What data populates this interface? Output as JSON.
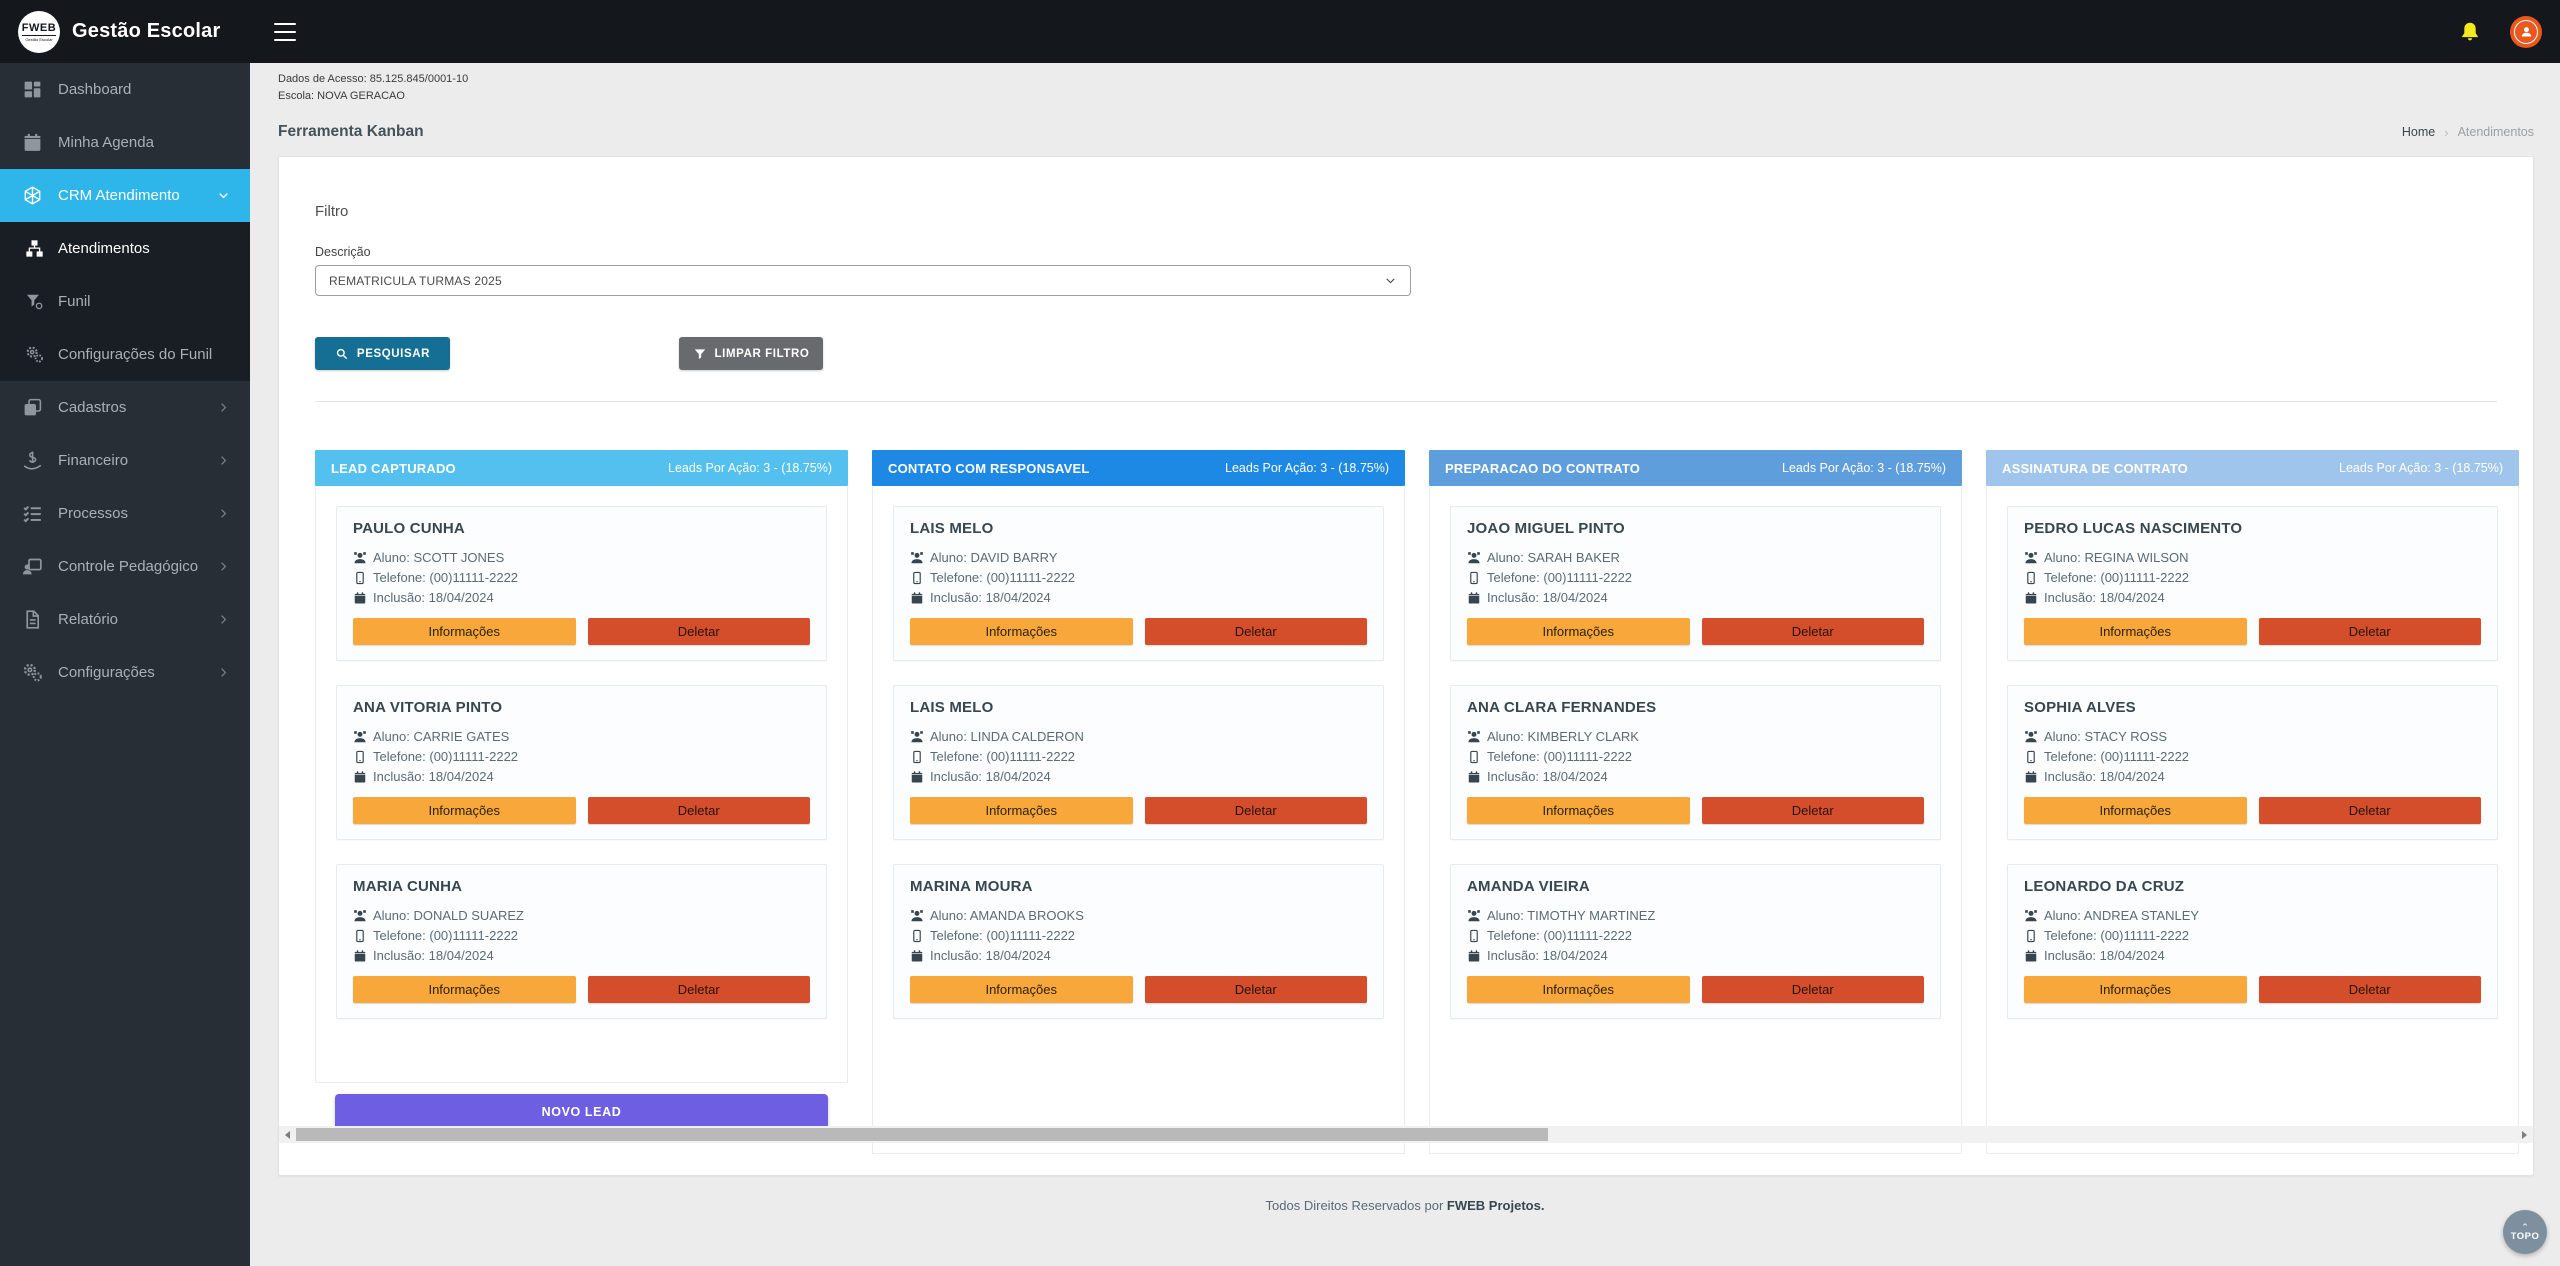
{
  "brand": {
    "logo_abbr": "FWEB",
    "logo_small": "Gestão Escolar",
    "app_title": "Gestão Escolar"
  },
  "infobar": {
    "access_line": "Dados de Acesso: 85.125.845/0001-10",
    "school_line": "Escola: NOVA GERACAO"
  },
  "page": {
    "title": "Ferramenta Kanban",
    "breadcrumb_home": "Home",
    "breadcrumb_sep": "›",
    "breadcrumb_current": "Atendimentos"
  },
  "sidebar": {
    "items": [
      {
        "label": "Dashboard",
        "icon": "dashboard-icon",
        "submenu": false
      },
      {
        "label": "Minha Agenda",
        "icon": "calendar-icon",
        "submenu": false
      },
      {
        "label": "CRM Atendimento",
        "icon": "crm-icon",
        "submenu": false,
        "active": true,
        "chevron": "down"
      },
      {
        "label": "Atendimentos",
        "icon": "atendimentos-icon",
        "submenu": true,
        "selected": true
      },
      {
        "label": "Funil",
        "icon": "funnel-icon",
        "submenu": true
      },
      {
        "label": "Configurações do Funil",
        "icon": "gears-icon",
        "submenu": true
      },
      {
        "label": "Cadastros",
        "icon": "cadastros-icon",
        "submenu": false,
        "chevron": "right"
      },
      {
        "label": "Financeiro",
        "icon": "financeiro-icon",
        "submenu": false,
        "chevron": "right"
      },
      {
        "label": "Processos",
        "icon": "processos-icon",
        "submenu": false,
        "chevron": "right"
      },
      {
        "label": "Controle Pedagógico",
        "icon": "controle-pedagogico-icon",
        "submenu": false,
        "chevron": "right"
      },
      {
        "label": "Relatório",
        "icon": "relatorio-icon",
        "submenu": false,
        "chevron": "right"
      },
      {
        "label": "Configurações",
        "icon": "configuracoes-icon",
        "submenu": false,
        "chevron": "right"
      }
    ]
  },
  "filter": {
    "section_title": "Filtro",
    "field_label": "Descrição",
    "selected_option": "REMATRICULA TURMAS 2025",
    "search_label": "PESQUISAR",
    "clear_label": "LIMPAR FILTRO",
    "search_color": "#156e93",
    "clear_color": "#676b6e"
  },
  "kanban": {
    "new_lead_label": "NOVO LEAD",
    "new_lead_color": "#6e5fe2",
    "card_buttons": {
      "info": "Informações",
      "delete": "Deletar"
    },
    "button_colors": {
      "info": "#f8a73a",
      "delete": "#d54e2c"
    },
    "field_labels": {
      "aluno": "Aluno:",
      "telefone": "Telefone:",
      "inclusao": "Inclusão:"
    },
    "columns": [
      {
        "title": "LEAD CAPTURADO",
        "stats": "Leads Por Ação: 3 - (18.75%)",
        "color": "#54c0f0",
        "has_new_lead": true,
        "cards": [
          {
            "name": "PAULO CUNHA",
            "aluno": "SCOTT JONES",
            "telefone": "(00)11111-2222",
            "inclusao": "18/04/2024"
          },
          {
            "name": "ANA VITORIA PINTO",
            "aluno": "CARRIE GATES",
            "telefone": "(00)11111-2222",
            "inclusao": "18/04/2024"
          },
          {
            "name": "MARIA CUNHA",
            "aluno": "DONALD SUAREZ",
            "telefone": "(00)11111-2222",
            "inclusao": "18/04/2024"
          }
        ]
      },
      {
        "title": "CONTATO COM RESPONSAVEL",
        "stats": "Leads Por Ação: 3 - (18.75%)",
        "color": "#1e88e5",
        "has_new_lead": false,
        "cards": [
          {
            "name": "LAIS MELO",
            "aluno": "DAVID BARRY",
            "telefone": "(00)11111-2222",
            "inclusao": "18/04/2024"
          },
          {
            "name": "LAIS MELO",
            "aluno": "LINDA CALDERON",
            "telefone": "(00)11111-2222",
            "inclusao": "18/04/2024"
          },
          {
            "name": "MARINA MOURA",
            "aluno": "AMANDA BROOKS",
            "telefone": "(00)11111-2222",
            "inclusao": "18/04/2024"
          }
        ]
      },
      {
        "title": "PREPARACAO DO CONTRATO",
        "stats": "Leads Por Ação: 3 - (18.75%)",
        "color": "#5f9edd",
        "has_new_lead": false,
        "cards": [
          {
            "name": "JOAO MIGUEL PINTO",
            "aluno": "SARAH BAKER",
            "telefone": "(00)11111-2222",
            "inclusao": "18/04/2024"
          },
          {
            "name": "ANA CLARA FERNANDES",
            "aluno": "KIMBERLY CLARK",
            "telefone": "(00)11111-2222",
            "inclusao": "18/04/2024"
          },
          {
            "name": "AMANDA VIEIRA",
            "aluno": "TIMOTHY MARTINEZ",
            "telefone": "(00)11111-2222",
            "inclusao": "18/04/2024"
          }
        ]
      },
      {
        "title": "ASSINATURA DE CONTRATO",
        "stats": "Leads Por Ação: 3 - (18.75%)",
        "color": "#9fc5ec",
        "has_new_lead": false,
        "cards": [
          {
            "name": "PEDRO LUCAS NASCIMENTO",
            "aluno": "REGINA WILSON",
            "telefone": "(00)11111-2222",
            "inclusao": "18/04/2024"
          },
          {
            "name": "SOPHIA ALVES",
            "aluno": "STACY ROSS",
            "telefone": "(00)11111-2222",
            "inclusao": "18/04/2024"
          },
          {
            "name": "LEONARDO DA CRUZ",
            "aluno": "ANDREA STANLEY",
            "telefone": "(00)11111-2222",
            "inclusao": "18/04/2024"
          }
        ]
      }
    ]
  },
  "footer": {
    "copyright": "Todos Direitos Reservados por",
    "brand": "FWEB Projetos.",
    "top_label": "TOPO",
    "top_chevron": "⌃"
  }
}
